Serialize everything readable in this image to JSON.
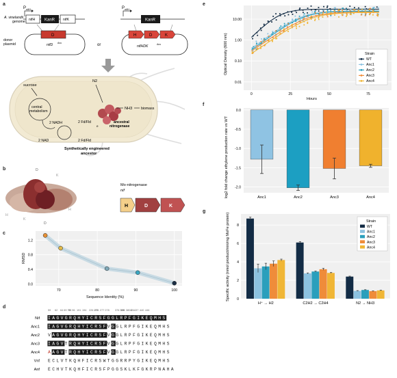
{
  "panels": {
    "a": "a",
    "b": "b",
    "c": "c",
    "d": "d",
    "e": "e",
    "f": "f",
    "g": "g"
  },
  "panel_a": {
    "promoter_left": "P",
    "promoter_left_sub": "nifH",
    "promoter_right": "P",
    "promoter_right_sub": "nifH",
    "genome_label_1": "A. vinelandii",
    "genome_label_2": "genome",
    "gene_nifH_left": "nifH",
    "gene_kanR_left": "KanR",
    "gene_nifK_left": "nifK",
    "gene_D": "D",
    "donor_label_1": "donor",
    "donor_label_2": "plasmid",
    "plasmid_left_label": "nifD",
    "plasmid_left_sup": "Anc",
    "or_text": "or",
    "gene_kanR_right": "KanR",
    "gene_H": "H",
    "gene_D2": "D",
    "gene_K": "K",
    "plasmid_right_label": "nifHDK",
    "plasmid_right_sup": "Anc",
    "sucrose": "sucrose",
    "central_metabolism_1": "central",
    "central_metabolism_2": "metabolism",
    "nadh": "2 NADH",
    "nad": "2 NAD",
    "fd_red": "2 Fd/Fld",
    "fd_ox": "2 Fd/Fld",
    "n2": "N2",
    "nh3": "NH3",
    "biomass": "biomass",
    "electron": "e",
    "ancestral_1": "ancestral",
    "ancestral_2": "nitrogenase",
    "cell_title_1": "Synthetically engineered",
    "cell_title_2": "ancestor"
  },
  "panel_b": {
    "mo_title": "Mo-nitrogenase",
    "nif": "nif",
    "genes": [
      "H",
      "D",
      "K"
    ],
    "structure_labels": [
      "D",
      "K",
      "H",
      "K",
      "D",
      "H"
    ]
  },
  "chart_data": [
    {
      "id": "c",
      "type": "scatter",
      "xlabel": "Sequence Identity (%)",
      "ylabel": "RMSD",
      "xticks": [
        70,
        80,
        90,
        100
      ],
      "yticks": [
        0.0,
        0.4,
        0.8,
        1.2
      ],
      "xlim": [
        64,
        102
      ],
      "ylim": [
        -0.05,
        1.45
      ],
      "points": [
        {
          "x": 66.5,
          "y": 1.33,
          "color": "#e69035"
        },
        {
          "x": 70.5,
          "y": 0.98,
          "color": "#e2b94a"
        },
        {
          "x": 82.5,
          "y": 0.42,
          "color": "#7fa9b8"
        },
        {
          "x": 90.5,
          "y": 0.31,
          "color": "#3ba7c2"
        },
        {
          "x": 100,
          "y": 0.02,
          "color": "#1b2f45"
        }
      ]
    },
    {
      "id": "e",
      "type": "line",
      "xlabel": "Hours",
      "ylabel": "Optical Density (600 nm)",
      "yscale": "log",
      "xticks": [
        0,
        25,
        50,
        75
      ],
      "yticks": [
        "0.01",
        "0.10",
        "1.00",
        "10.00"
      ],
      "xlim": [
        -5,
        90
      ],
      "ylim": [
        0.004,
        45
      ],
      "legend_title": "Strain",
      "legend_position": "bottom-right",
      "series": [
        {
          "name": "WT",
          "color": "#132c45",
          "K": 30,
          "r": 0.17,
          "t0": 18
        },
        {
          "name": "Anc1",
          "color": "#8cc2e0",
          "K": 25,
          "r": 0.13,
          "t0": 32
        },
        {
          "name": "Anc2",
          "color": "#2a9fbc",
          "K": 24,
          "r": 0.13,
          "t0": 33
        },
        {
          "name": "Anc3",
          "color": "#ef8c3a",
          "K": 22,
          "r": 0.12,
          "t0": 36
        },
        {
          "name": "Anc4",
          "color": "#f0b636",
          "K": 21,
          "r": 0.12,
          "t0": 38
        }
      ]
    },
    {
      "id": "f",
      "type": "bar",
      "ylabel": "log2 fold change ethylene production rate vs WT",
      "categories": [
        "Anc1",
        "Anc2",
        "Anc3",
        "Anc4"
      ],
      "values": [
        -1.28,
        -2.02,
        -1.52,
        -1.45
      ],
      "errors": [
        0.37,
        0.07,
        0.27,
        0.04
      ],
      "colors": [
        "#8fc3e3",
        "#1c9fc2",
        "#f07f30",
        "#f0b22d"
      ],
      "yticks": [
        0.0,
        -0.5,
        -1.0,
        -1.5,
        -2.0
      ],
      "ylim": [
        -2.15,
        0.05
      ]
    },
    {
      "id": "g",
      "type": "bar",
      "ylabel": "Specific activity (nmol product/min/mg MoFe protein)",
      "categories": [
        "H⁺ → H2",
        "C2H2 → C2H4",
        "N2 → NH3"
      ],
      "yticks": [
        0,
        2,
        4,
        6,
        8
      ],
      "ylim": [
        0,
        9.2
      ],
      "legend_title": "Strain",
      "legend_position": "top-right",
      "series": [
        {
          "name": "WT",
          "color": "#132c45",
          "values": [
            8.7,
            6.1,
            2.4
          ],
          "errors": [
            0.15,
            0.1,
            0.05
          ]
        },
        {
          "name": "Anc1",
          "color": "#8cc2e0",
          "values": [
            3.3,
            2.75,
            0.85
          ],
          "errors": [
            0.45,
            0.05,
            0.03
          ]
        },
        {
          "name": "Anc2",
          "color": "#2a9fbc",
          "values": [
            3.5,
            2.95,
            0.95
          ],
          "errors": [
            0.35,
            0.05,
            0.03
          ]
        },
        {
          "name": "Anc3",
          "color": "#ef8c3a",
          "values": [
            3.8,
            3.2,
            0.82
          ],
          "errors": [
            0.3,
            0.1,
            0.03
          ]
        },
        {
          "name": "Anc4",
          "color": "#f0b636",
          "values": [
            4.2,
            2.8,
            0.9
          ],
          "errors": [
            0.1,
            0.05,
            0.03
          ]
        }
      ]
    }
  ],
  "alignment": {
    "positions": [
      "59",
      "62",
      "64 69 70",
      "93 96",
      "191",
      "194",
      "226 231",
      "275",
      "277 278",
      "376 378",
      "380",
      "380 1",
      "424",
      "437",
      "440",
      "446"
    ],
    "rows": [
      {
        "name": "Nif",
        "seq": "I AGVGR QH Y I C RS F GGLRP F GIKE QMHS"
      },
      {
        "name": "Anc1",
        "seq": "I AGVGR QH Y I C RS F VGGLRP F GIKE QMHS"
      },
      {
        "name": "Anc2",
        "seq": "V AGVGR QH Y I C RS F VGGLRP F GIKE QMHS"
      },
      {
        "name": "Anc3",
        "seq": "I AGVTR QH Y I C RS F VGGLRP F GIKE QMHS"
      },
      {
        "name": "Anc4",
        "seq": "A AGVTR QH Y I C RS F VGGLRP F GIKE QMHS"
      },
      {
        "name": "Vnf",
        "seq": "E CLV TK Q H F I C RS W TGGRRP Y GIKE QMHS"
      },
      {
        "name": "Anf",
        "seq": "E CHV TK Q H F I C RS F PGGSKL KF GKRP NAHA"
      }
    ]
  }
}
